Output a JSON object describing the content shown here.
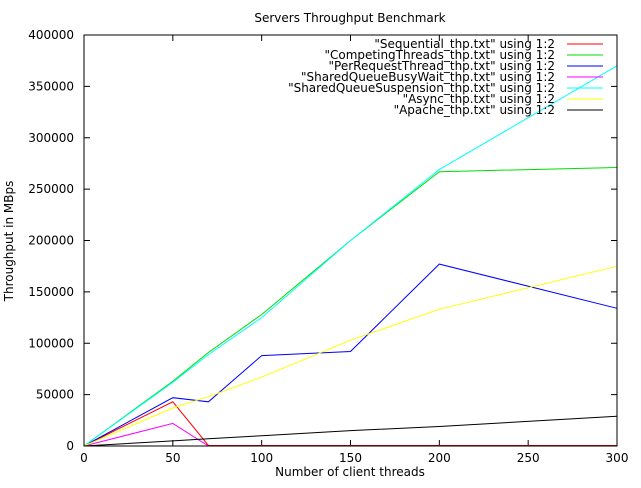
{
  "chart_data": {
    "type": "line",
    "title": "Servers Throughput Benchmark",
    "xlabel": "Number of client threads",
    "ylabel": "Throughput in MBps",
    "xlim": [
      0,
      300
    ],
    "ylim": [
      0,
      400000
    ],
    "xticks": [
      0,
      50,
      100,
      150,
      200,
      250,
      300
    ],
    "yticks": [
      0,
      50000,
      100000,
      150000,
      200000,
      250000,
      300000,
      350000,
      400000
    ],
    "grid": false,
    "legend_position": "top-right",
    "series": [
      {
        "name": "\"Sequential_thp.txt\" using 1:2",
        "color": "#ff0000",
        "x": [
          0,
          50,
          70,
          100,
          150,
          200,
          300
        ],
        "y": [
          0,
          43000,
          500,
          500,
          500,
          500,
          500
        ]
      },
      {
        "name": "\"CompetingThreads_thp.txt\" using 1:2",
        "color": "#00dd00",
        "x": [
          0,
          50,
          70,
          100,
          150,
          200,
          300
        ],
        "y": [
          0,
          63000,
          91000,
          128000,
          200000,
          267000,
          271000
        ]
      },
      {
        "name": "\"PerRequestThread_thp.txt\" using 1:2",
        "color": "#0000ff",
        "x": [
          0,
          50,
          70,
          100,
          150,
          200,
          300
        ],
        "y": [
          0,
          47000,
          43000,
          88000,
          92000,
          177000,
          134000
        ]
      },
      {
        "name": "\"SharedQueueBusyWait_thp.txt\" using 1:2",
        "color": "#ff00ff",
        "x": [
          0,
          50,
          70,
          100,
          150,
          200,
          300
        ],
        "y": [
          0,
          22000,
          0,
          0,
          0,
          0,
          0
        ]
      },
      {
        "name": "\"SharedQueueSuspension_thp.txt\" using 1:2",
        "color": "#00ffff",
        "x": [
          0,
          50,
          70,
          100,
          150,
          200,
          300
        ],
        "y": [
          0,
          62000,
          89000,
          125000,
          200000,
          269000,
          370000
        ]
      },
      {
        "name": "\"Async_thp.txt\" using 1:2",
        "color": "#ffff00",
        "x": [
          0,
          50,
          70,
          100,
          150,
          200,
          300
        ],
        "y": [
          0,
          37000,
          48000,
          67000,
          103000,
          133000,
          175000
        ]
      },
      {
        "name": "\"Apache_thp.txt\" using 1:2",
        "color": "#000000",
        "x": [
          0,
          50,
          70,
          100,
          150,
          200,
          300
        ],
        "y": [
          0,
          5000,
          7000,
          10000,
          15000,
          19000,
          29000
        ]
      }
    ]
  }
}
